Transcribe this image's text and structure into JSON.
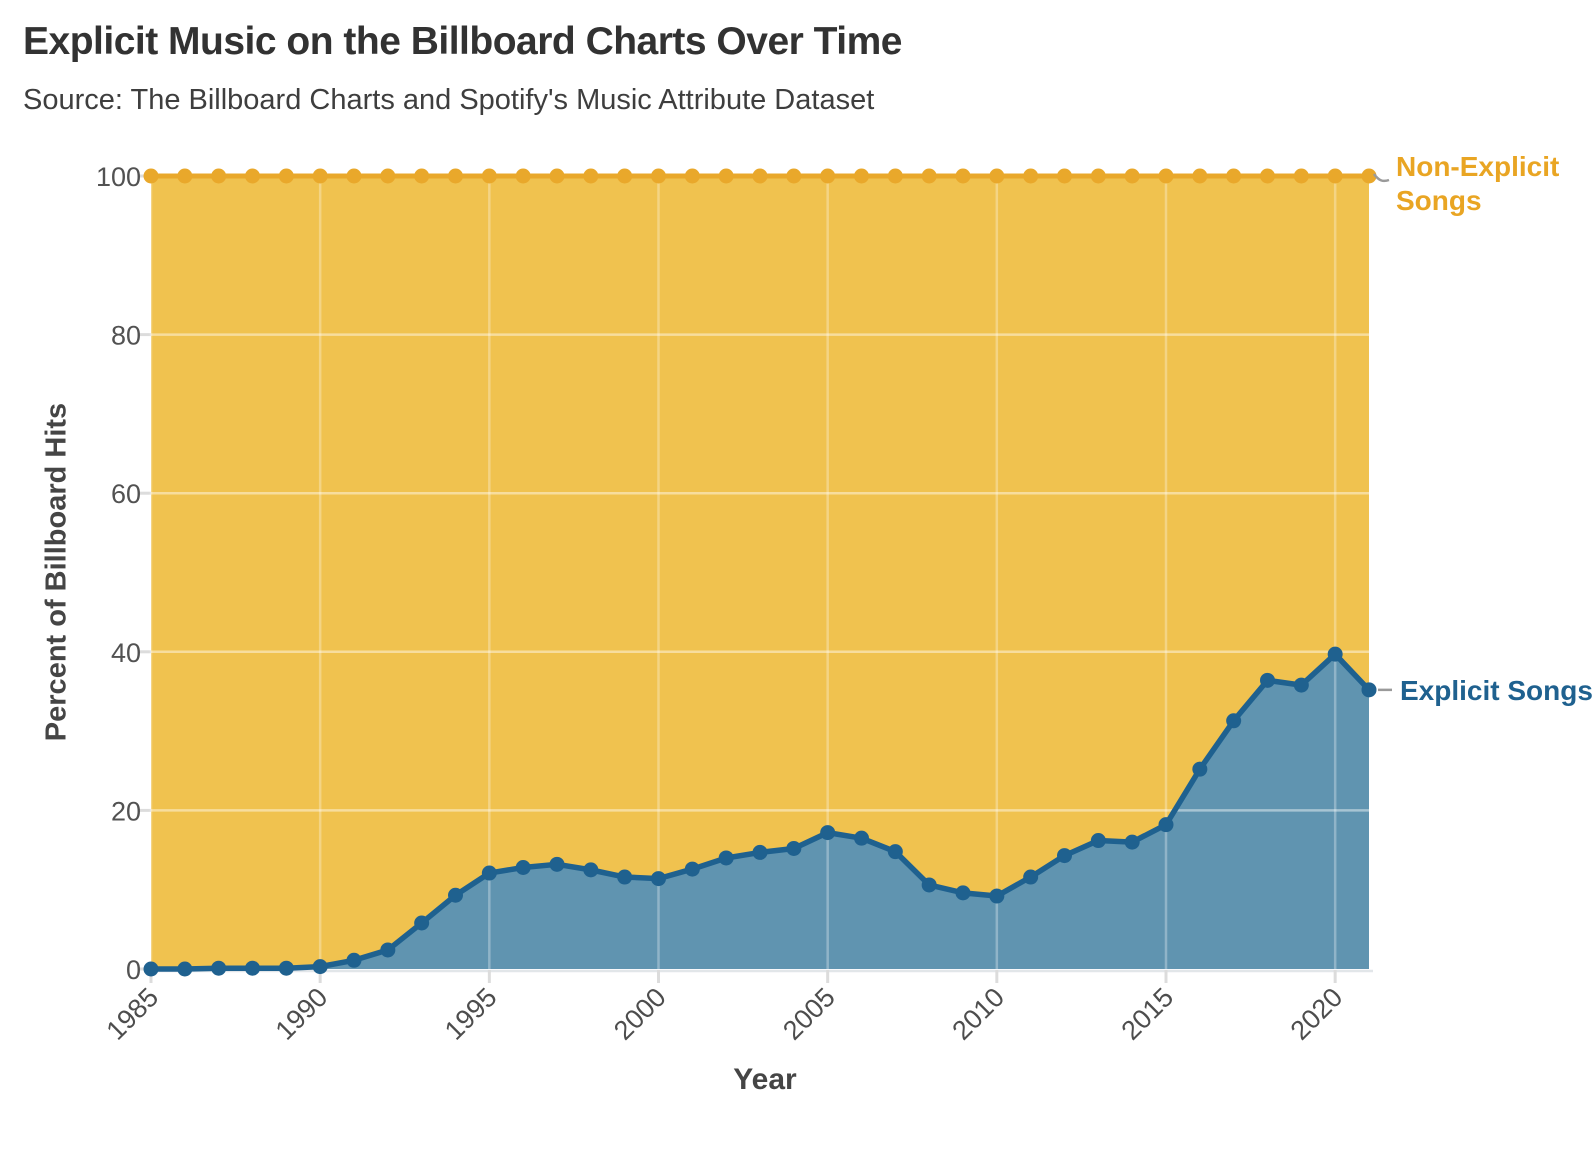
{
  "header": {
    "title": "Explicit Music on the Billboard Charts Over Time",
    "subtitle": "Source: The Billboard Charts and Spotify's Music Attribute Dataset"
  },
  "annotations": {
    "non_explicit": {
      "line1": "Non-Explicit",
      "line2": "Songs"
    },
    "explicit": {
      "label": "Explicit Songs"
    }
  },
  "chart_data": {
    "type": "area",
    "stacked": true,
    "title": "Explicit Music on the Billboard Charts Over Time",
    "subtitle": "Source: The Billboard Charts and Spotify's Music Attribute Dataset",
    "xlabel": "Year",
    "ylabel": "Percent of Billboard Hits",
    "ylim": [
      0,
      100
    ],
    "yticks": [
      0,
      20,
      40,
      60,
      80,
      100
    ],
    "xticks": [
      1985,
      1990,
      1995,
      2000,
      2005,
      2010,
      2015,
      2020
    ],
    "grid": true,
    "legend_position": "right-annotations",
    "x": [
      1985,
      1986,
      1987,
      1988,
      1989,
      1990,
      1991,
      1992,
      1993,
      1994,
      1995,
      1996,
      1997,
      1998,
      1999,
      2000,
      2001,
      2002,
      2003,
      2004,
      2005,
      2006,
      2007,
      2008,
      2009,
      2010,
      2011,
      2012,
      2013,
      2014,
      2015,
      2016,
      2017,
      2018,
      2019,
      2020,
      2021
    ],
    "series": [
      {
        "name": "Explicit Songs",
        "color_fill": "#6094B0",
        "color_line": "#1F618F",
        "values": [
          0,
          0,
          0.1,
          0.1,
          0.1,
          0.3,
          1.1,
          2.4,
          5.8,
          9.3,
          12.1,
          12.8,
          13.2,
          12.5,
          11.6,
          11.4,
          12.6,
          14,
          14.7,
          15.2,
          17.2,
          16.5,
          14.8,
          10.6,
          9.6,
          9.2,
          11.6,
          14.3,
          16.2,
          16,
          18.2,
          25.2,
          31.3,
          36.4,
          35.8,
          39.7,
          35.2
        ]
      },
      {
        "name": "Non-Explicit Songs",
        "color_fill": "#F0C24F",
        "color_line": "#E9A82B",
        "values": [
          100,
          100,
          99.9,
          99.9,
          99.9,
          99.7,
          98.9,
          97.6,
          94.2,
          90.7,
          87.9,
          87.2,
          86.8,
          87.5,
          88.4,
          88.6,
          87.4,
          86,
          85.3,
          84.8,
          82.8,
          83.5,
          85.2,
          89.4,
          90.4,
          90.8,
          88.4,
          85.7,
          83.8,
          84,
          81.8,
          74.8,
          68.7,
          63.6,
          64.2,
          60.3,
          64.8
        ]
      }
    ],
    "colors": {
      "grid_horizontal": "rgba(255,255,255,0.45)",
      "grid_vertical": "rgba(255,255,255,0.30)",
      "tick_mark": "#dcdcdc",
      "tick_label": "#4d4d4d",
      "baseline": "#e2e6e9",
      "connector": "#9a9a9a"
    }
  }
}
